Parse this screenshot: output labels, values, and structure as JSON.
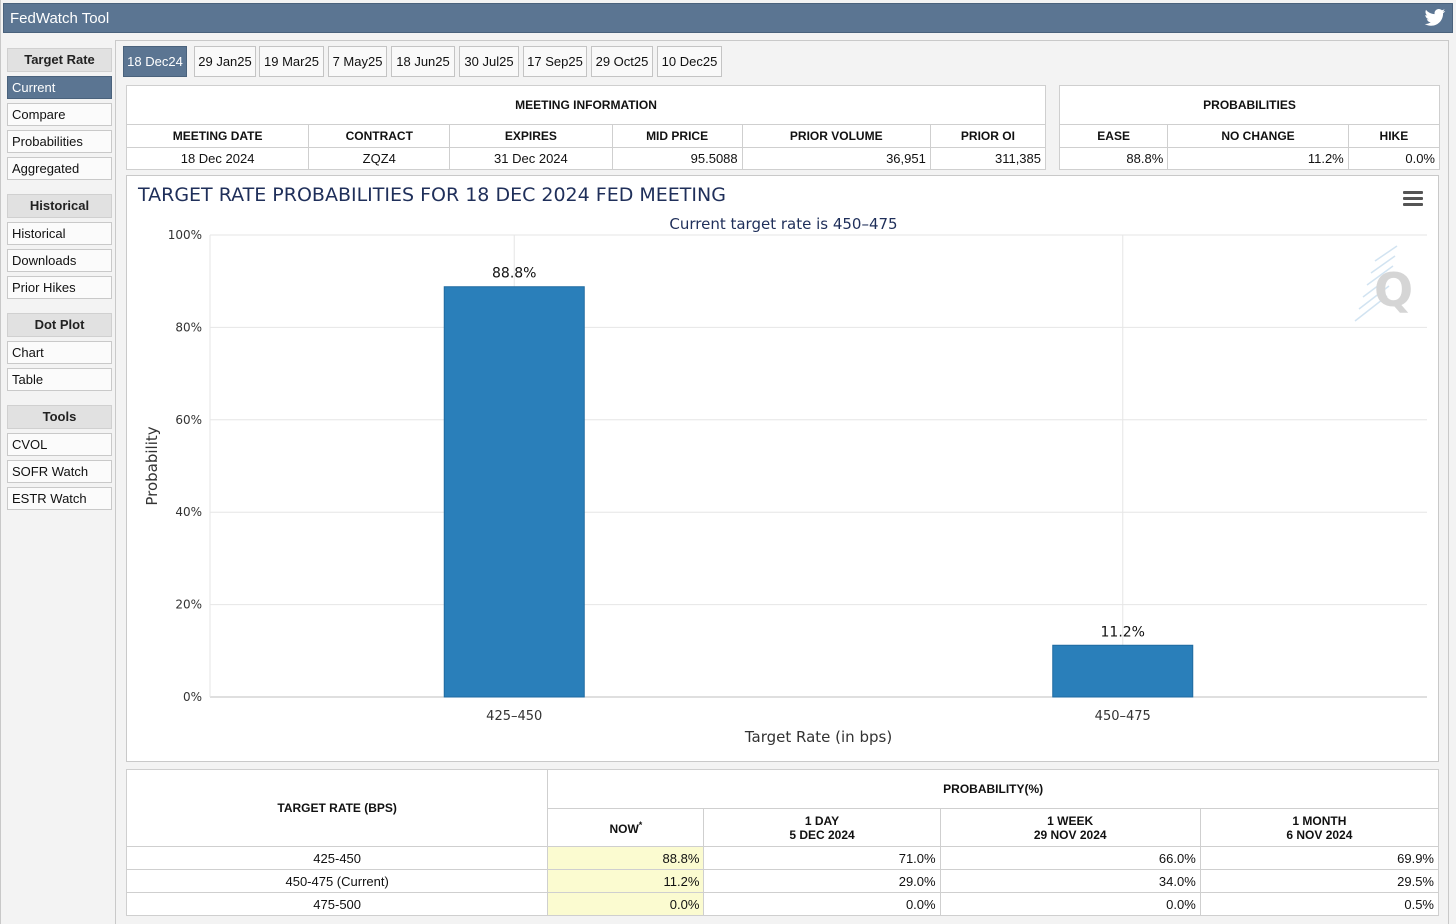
{
  "app": {
    "title": "FedWatch Tool"
  },
  "sidebar": {
    "sections": [
      {
        "heading": "Target Rate",
        "items": [
          "Current",
          "Compare",
          "Probabilities",
          "Aggregated"
        ]
      },
      {
        "heading": "Historical",
        "items": [
          "Historical",
          "Downloads",
          "Prior Hikes"
        ]
      },
      {
        "heading": "Dot Plot",
        "items": [
          "Chart",
          "Table"
        ]
      },
      {
        "heading": "Tools",
        "items": [
          "CVOL",
          "SOFR Watch",
          "ESTR Watch"
        ]
      }
    ],
    "active_item": "Current"
  },
  "tabs": [
    "18 Dec24",
    "29 Jan25",
    "19 Mar25",
    "7 May25",
    "18 Jun25",
    "30 Jul25",
    "17 Sep25",
    "29 Oct25",
    "10 Dec25"
  ],
  "active_tab": "18 Dec24",
  "meeting_info": {
    "heading": "MEETING INFORMATION",
    "columns": [
      "MEETING DATE",
      "CONTRACT",
      "EXPIRES",
      "MID PRICE",
      "PRIOR VOLUME",
      "PRIOR OI"
    ],
    "values": [
      "18 Dec 2024",
      "ZQZ4",
      "31 Dec 2024",
      "95.5088",
      "36,951",
      "311,385"
    ]
  },
  "probabilities": {
    "heading": "PROBABILITIES",
    "columns": [
      "EASE",
      "NO CHANGE",
      "HIKE"
    ],
    "values": [
      "88.8%",
      "11.2%",
      "0.0%"
    ]
  },
  "chart_data": {
    "type": "bar",
    "title": "TARGET RATE PROBABILITIES FOR 18 DEC 2024 FED MEETING",
    "subtitle": "Current target rate is 450–475",
    "xlabel": "Target Rate (in bps)",
    "ylabel": "Probability",
    "categories": [
      "425–450",
      "450–475"
    ],
    "values": [
      88.8,
      11.2
    ],
    "data_labels": [
      "88.8%",
      "11.2%"
    ],
    "ylim": [
      0,
      100
    ],
    "yticks": [
      "0%",
      "20%",
      "40%",
      "60%",
      "80%",
      "100%"
    ],
    "bar_color": "#2a7fba",
    "grid": true
  },
  "prob_table": {
    "heading_left": "TARGET RATE (BPS)",
    "heading_group": "PROBABILITY(%)",
    "columns": [
      {
        "line1": "NOW",
        "marker": "*",
        "line2": ""
      },
      {
        "line1": "1 DAY",
        "line2": "5 DEC 2024"
      },
      {
        "line1": "1 WEEK",
        "line2": "29 NOV 2024"
      },
      {
        "line1": "1 MONTH",
        "line2": "6 NOV 2024"
      }
    ],
    "rows": [
      {
        "rate": "425-450",
        "values": [
          "88.8%",
          "71.0%",
          "66.0%",
          "69.9%"
        ]
      },
      {
        "rate": "450-475 (Current)",
        "values": [
          "11.2%",
          "29.0%",
          "34.0%",
          "29.5%"
        ]
      },
      {
        "rate": "475-500",
        "values": [
          "0.0%",
          "0.0%",
          "0.0%",
          "0.5%"
        ]
      }
    ],
    "now_highlight": "#fbfbd0"
  }
}
